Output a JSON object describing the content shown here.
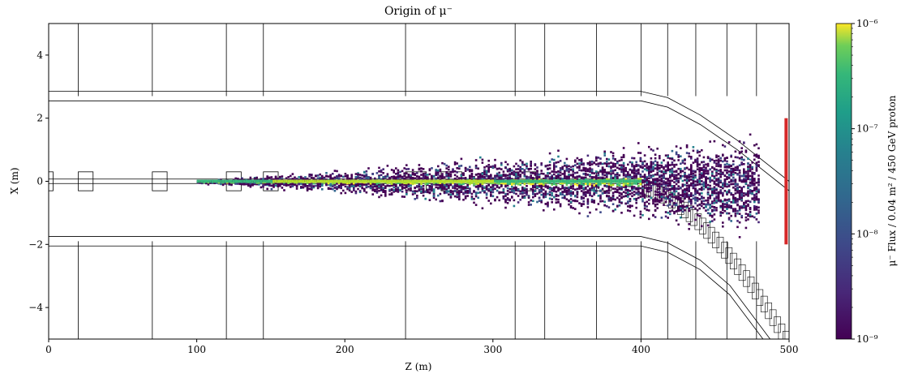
{
  "chart_data": {
    "type": "heatmap",
    "title": "Origin of μ⁻",
    "xlabel": "Z (m)",
    "ylabel": "X (m)",
    "xlim": [
      0,
      500
    ],
    "ylim": [
      -5,
      5
    ],
    "xticks": [
      "0",
      "100",
      "200",
      "300",
      "400",
      "500"
    ],
    "yticks": [
      "−4",
      "−2",
      "0",
      "2",
      "4"
    ],
    "ytick_values": [
      -4,
      -2,
      0,
      2,
      4
    ],
    "xtick_values": [
      0,
      100,
      200,
      300,
      400,
      500
    ],
    "grid": false,
    "colorbar": {
      "label": "μ⁻ Flux / 0.04 m² / 450 GeV proton",
      "scale": "log",
      "range": [
        1e-09,
        1e-06
      ],
      "tick_labels": [
        "10⁻⁶",
        "10⁻⁷",
        "10⁻⁸",
        "10⁻⁹"
      ],
      "tick_exponents": [
        -6,
        -7,
        -8,
        -9
      ],
      "colormap": "viridis"
    },
    "density_profile": {
      "z_start": 100,
      "z_end": 480,
      "spread_x_at_start": 0.05,
      "spread_x_at_end": 1.4,
      "note_bands": "bright core near X=0 between Z=100 and Z=300"
    },
    "detector_marker": {
      "z": 498,
      "x_range": [
        -2,
        2
      ],
      "color": "#d62728"
    },
    "colors": {
      "outline": "#000000",
      "background": "#ffffff",
      "marker": "#d62728"
    }
  }
}
